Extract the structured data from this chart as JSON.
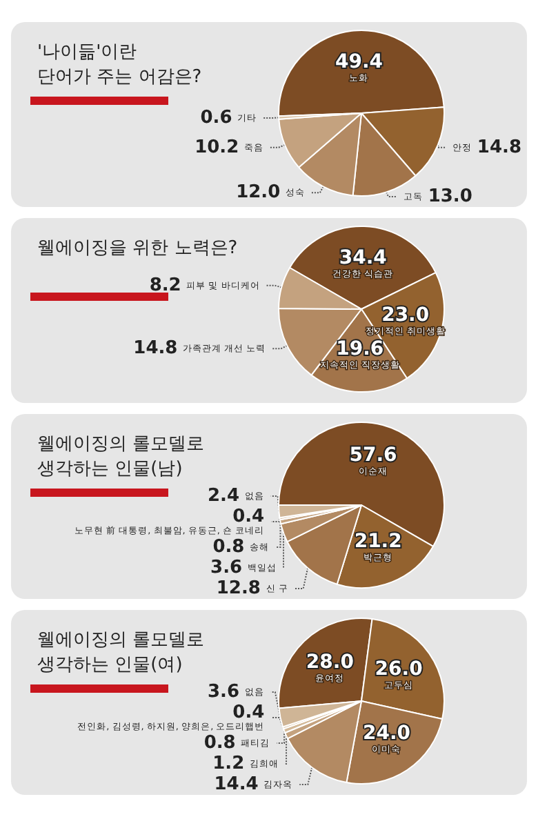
{
  "chart_data": [
    {
      "type": "pie",
      "title": "'나이듦'이란\n단어가 주는 어감은?",
      "categories": [
        "노화",
        "안정",
        "고독",
        "성숙",
        "죽음",
        "기타"
      ],
      "values": [
        49.4,
        14.8,
        13.0,
        12.0,
        10.2,
        0.6
      ],
      "value_labels": [
        "49.4",
        "14.8",
        "13.0",
        "12.0",
        "10.2",
        "0.6"
      ],
      "colors": [
        "#7d4c24",
        "#93622f",
        "#a2744a",
        "#b38a63",
        "#c4a27f",
        "#d9c2a6"
      ]
    },
    {
      "type": "pie",
      "title": "웰에이징을 위한 노력은?",
      "categories": [
        "건강한 식습관",
        "정기적인 취미생활",
        "지속적인 직장생활",
        "가족관계 개선 노력",
        "피부 및 바디케어"
      ],
      "values": [
        34.4,
        23.0,
        19.6,
        14.8,
        8.2
      ],
      "value_labels": [
        "34.4",
        "23.0",
        "19.6",
        "14.8",
        "8.2"
      ],
      "colors": [
        "#7d4c24",
        "#93622f",
        "#a2744a",
        "#b38a63",
        "#c4a27f"
      ]
    },
    {
      "type": "pie",
      "title": "웰에이징의 롤모델로\n생각하는 인물(남)",
      "categories": [
        "이순재",
        "박근형",
        "신 구",
        "백일섭",
        "송해",
        "노무현 前 대통령, 최불암, 유동근, 숀 코네리",
        "없음"
      ],
      "values": [
        57.6,
        21.2,
        12.8,
        3.6,
        0.8,
        0.4,
        2.4
      ],
      "value_labels": [
        "57.6",
        "21.2",
        "12.8",
        "3.6",
        "0.8",
        "0.4",
        "2.4"
      ],
      "colors": [
        "#7d4c24",
        "#93622f",
        "#a2744a",
        "#b38a63",
        "#c4a27f",
        "#d9c2a6",
        "#cfb596"
      ]
    },
    {
      "type": "pie",
      "title": "웰에이징의 롤모델로\n생각하는 인물(여)",
      "categories": [
        "윤여정",
        "고두심",
        "이미숙",
        "김자옥",
        "김희애",
        "패티김",
        "전인화, 김성령, 하지원, 양희은, 오드리햅번",
        "없음"
      ],
      "values": [
        28.0,
        26.0,
        24.0,
        14.4,
        1.2,
        0.8,
        0.4,
        3.6
      ],
      "value_labels": [
        "28.0",
        "26.0",
        "24.0",
        "14.4",
        "1.2",
        "0.8",
        "0.4",
        "3.6"
      ],
      "colors": [
        "#7d4c24",
        "#93622f",
        "#a2744a",
        "#b38a63",
        "#c4a27f",
        "#d3b998",
        "#e0cdb5",
        "#cfb596"
      ]
    }
  ]
}
